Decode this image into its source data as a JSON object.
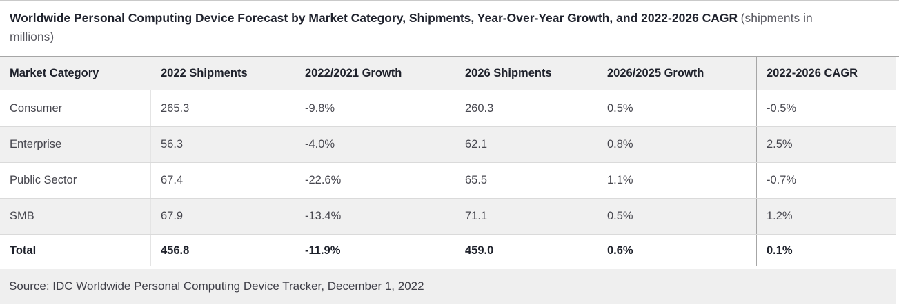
{
  "title": {
    "main": "Worldwide Personal Computing Device Forecast by Market Category, Shipments, Year-Over-Year Growth, and 2022-2026 CAGR",
    "suffix": "(shipments in millions)"
  },
  "table": {
    "columns": [
      "Market Category",
      "2022 Shipments",
      "2022/2021 Growth",
      "2026 Shipments",
      "2026/2025 Growth",
      "2022-2026 CAGR"
    ],
    "rows": [
      [
        "Consumer",
        "265.3",
        "-9.8%",
        "260.3",
        "0.5%",
        "-0.5%"
      ],
      [
        "Enterprise",
        "56.3",
        "-4.0%",
        "62.1",
        "0.8%",
        "2.5%"
      ],
      [
        "Public Sector",
        "67.4",
        "-22.6%",
        "65.5",
        "1.1%",
        "-0.7%"
      ],
      [
        "SMB",
        "67.9",
        "-13.4%",
        "71.1",
        "0.5%",
        "1.2%"
      ]
    ],
    "total": [
      "Total",
      "456.8",
      "-11.9%",
      "459.0",
      "0.6%",
      "0.1%"
    ]
  },
  "footer": {
    "source": "Source: IDC Worldwide Personal Computing Device Tracker, December 1, 2022"
  },
  "colors": {
    "header_background": "#f0f0f0",
    "alt_row_background": "#f0f0f0",
    "footer_background": "#efefef",
    "dark_divider": "#a6a6a6",
    "light_divider": "#e4e4e4",
    "heading_text": "#1e212b",
    "body_text": "#47474f"
  },
  "chart_data": {
    "type": "table",
    "title": "Worldwide Personal Computing Device Forecast by Market Category, Shipments, Year-Over-Year Growth, and 2022-2026 CAGR",
    "units": "shipments in millions",
    "columns": [
      "Market Category",
      "2022 Shipments",
      "2022/2021 Growth",
      "2026 Shipments",
      "2026/2025 Growth",
      "2022-2026 CAGR"
    ],
    "rows": [
      {
        "market_category": "Consumer",
        "shipments_2022": 265.3,
        "growth_2022_2021_pct": -9.8,
        "shipments_2026": 260.3,
        "growth_2026_2025_pct": 0.5,
        "cagr_2022_2026_pct": -0.5
      },
      {
        "market_category": "Enterprise",
        "shipments_2022": 56.3,
        "growth_2022_2021_pct": -4.0,
        "shipments_2026": 62.1,
        "growth_2026_2025_pct": 0.8,
        "cagr_2022_2026_pct": 2.5
      },
      {
        "market_category": "Public Sector",
        "shipments_2022": 67.4,
        "growth_2022_2021_pct": -22.6,
        "shipments_2026": 65.5,
        "growth_2026_2025_pct": 1.1,
        "cagr_2022_2026_pct": -0.7
      },
      {
        "market_category": "SMB",
        "shipments_2022": 67.9,
        "growth_2022_2021_pct": -13.4,
        "shipments_2026": 71.1,
        "growth_2026_2025_pct": 0.5,
        "cagr_2022_2026_pct": 1.2
      },
      {
        "market_category": "Total",
        "shipments_2022": 456.8,
        "growth_2022_2021_pct": -11.9,
        "shipments_2026": 459.0,
        "growth_2026_2025_pct": 0.6,
        "cagr_2022_2026_pct": 0.1
      }
    ],
    "source": "Source: IDC Worldwide Personal Computing Device Tracker, December 1, 2022"
  }
}
